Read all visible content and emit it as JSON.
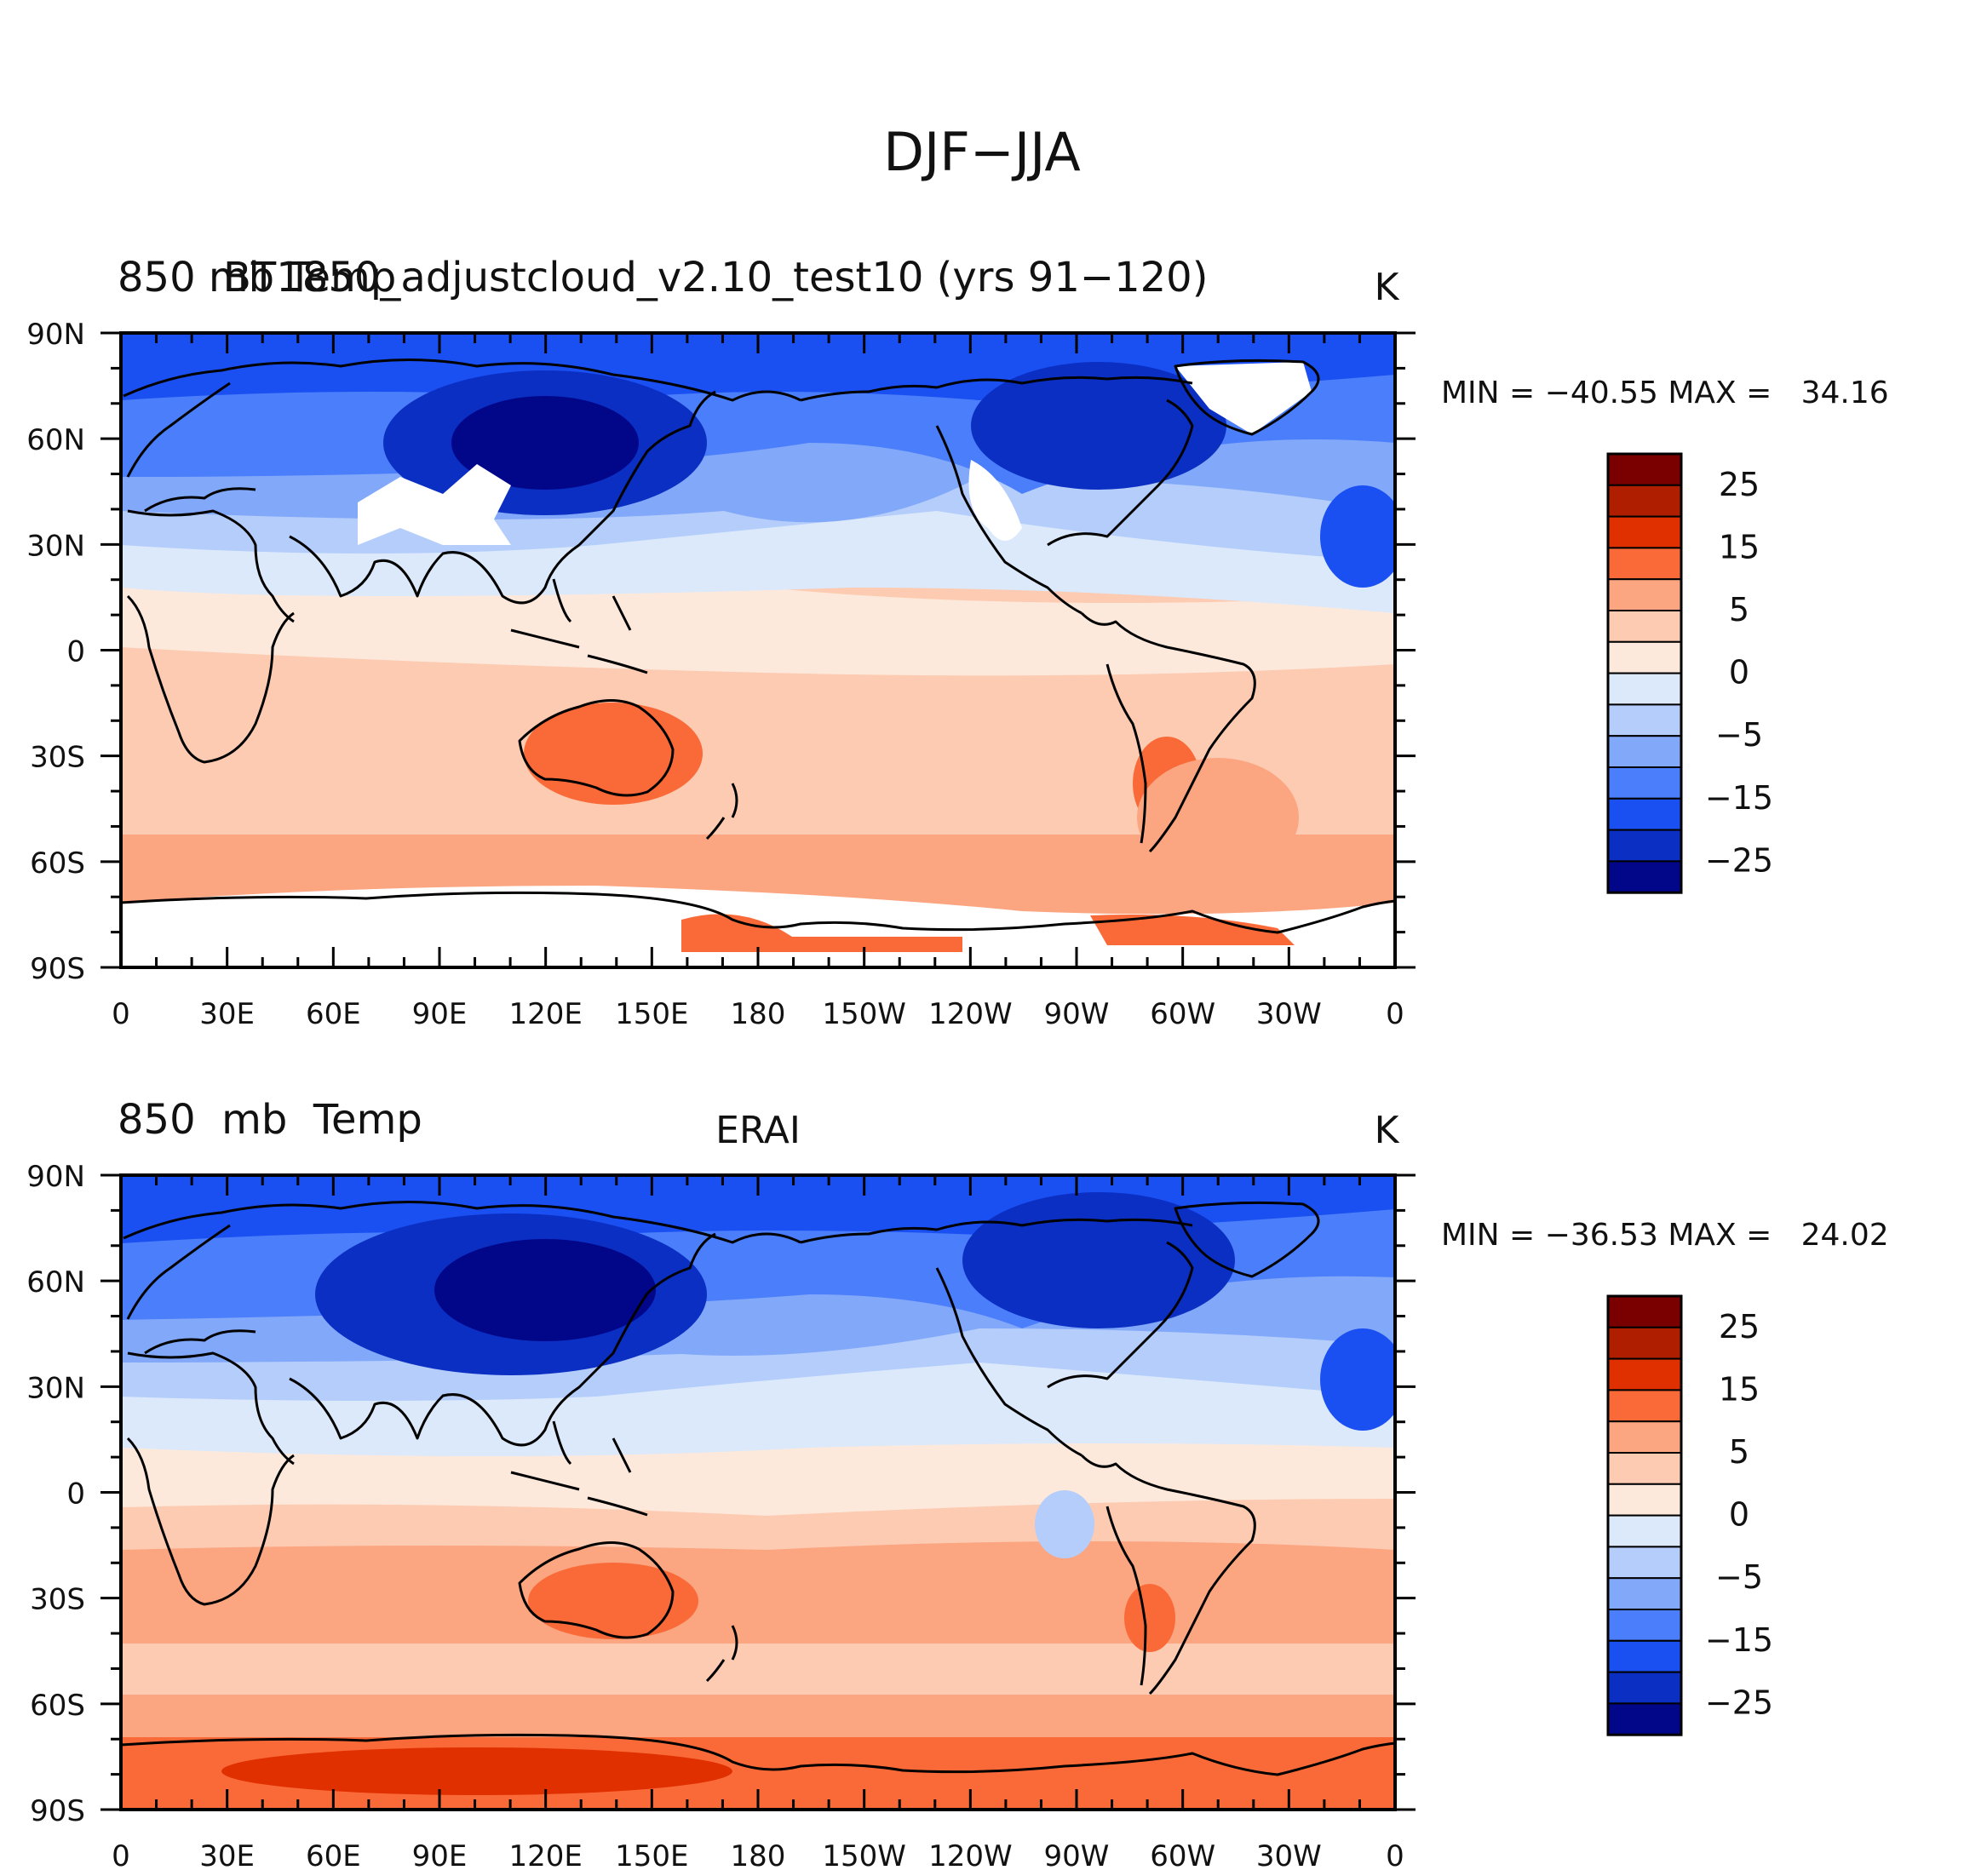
{
  "figure": {
    "title": "DJF−JJA"
  },
  "panels": [
    {
      "left_title": "850  mb  Temp",
      "case_title": "BT1850_adjustcloud_v2.10_test10 (yrs 91−120)",
      "center_title": "",
      "units": "K",
      "minmax": "MIN = −40.55 MAX =   34.16"
    },
    {
      "left_title": "850  mb  Temp",
      "case_title": "",
      "center_title": "ERAI",
      "units": "K",
      "minmax": "MIN = −36.53 MAX =   24.02"
    }
  ],
  "lat_labels": [
    "90N",
    "60N",
    "30N",
    "0",
    "30S",
    "60S",
    "90S"
  ],
  "lon_labels": [
    "0",
    "30E",
    "60E",
    "90E",
    "120E",
    "150E",
    "180",
    "150W",
    "120W",
    "90W",
    "60W",
    "30W",
    "0"
  ],
  "colorbar": {
    "labels": [
      "25",
      "15",
      "5",
      "0",
      "−5",
      "−15",
      "−25"
    ],
    "colors_top_to_bottom": [
      "#7a0000",
      "#b01e00",
      "#e03000",
      "#fa6a38",
      "#fca581",
      "#fdcbb2",
      "#fde9dc",
      "#dbe9fb",
      "#b4cdfb",
      "#82a8fa",
      "#4b7efa",
      "#1a4ff2",
      "#0a2fc2",
      "#02078a"
    ]
  },
  "palette": {
    "deep_blue": "#02078a",
    "blue_1": "#0a2fc2",
    "blue_2": "#1a4ff2",
    "blue_3": "#4b7efa",
    "blue_4": "#82a8fa",
    "blue_5": "#b4cdfb",
    "blue_6": "#dbe9fb",
    "red_1": "#fde9dc",
    "red_2": "#fdcbb2",
    "red_3": "#fca581",
    "red_4": "#fa6a38",
    "red_5": "#e03000",
    "land": "#000000"
  }
}
